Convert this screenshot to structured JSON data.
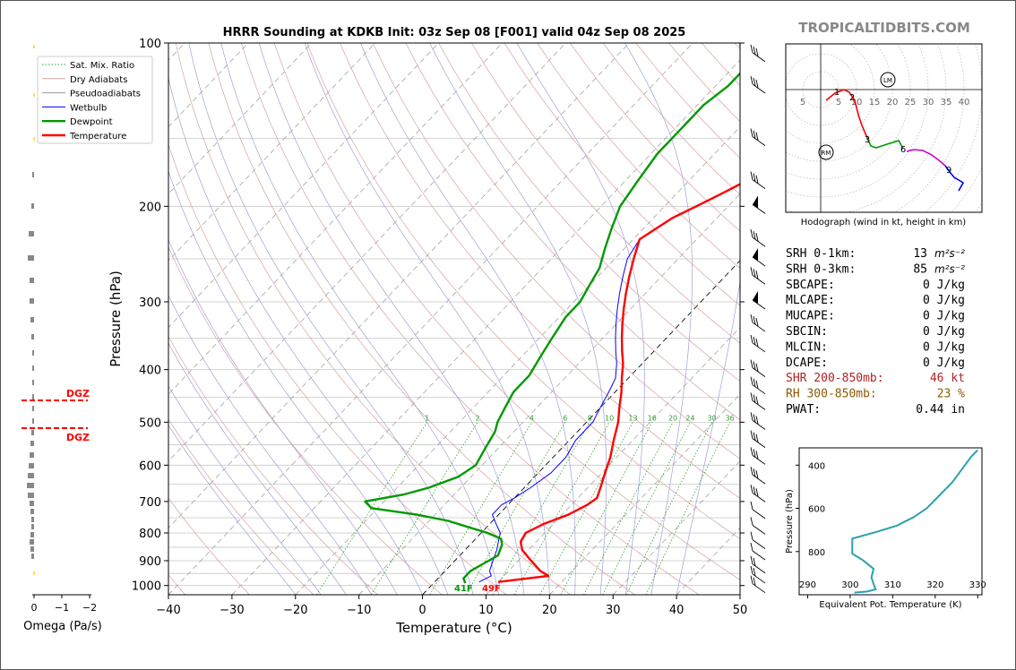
{
  "title": "HRRR Sounding at KDKB Init: 03z Sep 08 [F001] valid 04z Sep 08 2025",
  "watermark": "TROPICALTIDBITS.COM",
  "chart_data": [
    {
      "id": "skewt",
      "type": "line",
      "xlabel": "Temperature (°C)",
      "ylabel": "Pressure (hPa)",
      "xlim": [
        -40,
        50
      ],
      "ylim": [
        1040,
        100
      ],
      "yscale": "log",
      "x_ticks": [
        "−40",
        "−30",
        "−20",
        "−10",
        "0",
        "10",
        "20",
        "30",
        "40",
        "50"
      ],
      "y_ticks": [
        "100",
        "200",
        "300",
        "400",
        "500",
        "600",
        "700",
        "800",
        "900",
        "1000"
      ],
      "grid": true,
      "legend_position": "top-left",
      "legend": [
        "Sat. Mix. Ratio",
        "Dry Adiabats",
        "Pseudoadiabats",
        "Wetbulb",
        "Dewpoint",
        "Temperature"
      ],
      "mixing_ratio_labels": [
        "1",
        "2",
        "4",
        "6",
        "8",
        "10",
        "13",
        "16",
        "20",
        "24",
        "30",
        "36"
      ],
      "surface_temp_label": "49F",
      "surface_dew_label": "41F",
      "series": [
        {
          "name": "Temperature",
          "color": "#ff0000",
          "points": [
            [
              10,
              985
            ],
            [
              17,
              960
            ],
            [
              15,
              940
            ],
            [
              12,
              900
            ],
            [
              9,
              860
            ],
            [
              7.5,
              830
            ],
            [
              7,
              800
            ],
            [
              8.5,
              770
            ],
            [
              11,
              740
            ],
            [
              12.5,
              710
            ],
            [
              13,
              690
            ],
            [
              12,
              660
            ],
            [
              10.5,
              620
            ],
            [
              9,
              580
            ],
            [
              7,
              540
            ],
            [
              5,
              500
            ],
            [
              3,
              470
            ],
            [
              1,
              440
            ],
            [
              -1,
              415
            ],
            [
              -3,
              390
            ],
            [
              -5,
              370
            ],
            [
              -7,
              350
            ],
            [
              -9,
              330
            ],
            [
              -11,
              310
            ],
            [
              -13,
              290
            ],
            [
              -15,
              270
            ],
            [
              -17,
              250
            ],
            [
              -19,
              230
            ],
            [
              -17,
              210
            ],
            [
              -15,
              200
            ],
            [
              -13,
              190
            ],
            [
              -11,
              180
            ],
            [
              -9,
              170
            ],
            [
              -7,
              160
            ],
            [
              -5,
              150
            ],
            [
              -3,
              140
            ],
            [
              -1,
              130
            ],
            [
              1,
              120
            ],
            [
              2.5,
              110
            ],
            [
              3.5,
              100
            ]
          ]
        },
        {
          "name": "Dewpoint",
          "color": "#009900",
          "points": [
            [
              5,
              990
            ],
            [
              4,
              970
            ],
            [
              4,
              940
            ],
            [
              5,
              910
            ],
            [
              6,
              880
            ],
            [
              5,
              840
            ],
            [
              4,
              820
            ],
            [
              1,
              800
            ],
            [
              -3,
              780
            ],
            [
              -7,
              760
            ],
            [
              -13,
              740
            ],
            [
              -21,
              720
            ],
            [
              -23,
              700
            ],
            [
              -18,
              680
            ],
            [
              -15,
              660
            ],
            [
              -12,
              630
            ],
            [
              -11,
              600
            ],
            [
              -12,
              560
            ],
            [
              -13,
              520
            ],
            [
              -14,
              500
            ],
            [
              -15,
              470
            ],
            [
              -16,
              440
            ],
            [
              -16,
              410
            ],
            [
              -17,
              380
            ],
            [
              -18,
              350
            ],
            [
              -19,
              320
            ],
            [
              -19,
              300
            ],
            [
              -20,
              280
            ],
            [
              -21,
              260
            ],
            [
              -23,
              240
            ],
            [
              -25,
              220
            ],
            [
              -27,
              200
            ],
            [
              -28,
              180
            ],
            [
              -29,
              160
            ],
            [
              -29,
              150
            ],
            [
              -29,
              140
            ],
            [
              -29,
              130
            ],
            [
              -28,
              120
            ],
            [
              -28,
              110
            ],
            [
              -27,
              100
            ]
          ]
        },
        {
          "name": "Wetbulb",
          "color": "#0000ff",
          "points": [
            [
              7,
              985
            ],
            [
              8,
              960
            ],
            [
              7,
              940
            ],
            [
              6,
              900
            ],
            [
              5,
              860
            ],
            [
              4,
              830
            ],
            [
              3,
              800
            ],
            [
              1,
              770
            ],
            [
              -1,
              740
            ],
            [
              -1,
              710
            ],
            [
              0,
              690
            ],
            [
              1,
              660
            ],
            [
              2,
              620
            ],
            [
              2,
              580
            ],
            [
              1,
              540
            ],
            [
              1,
              500
            ],
            [
              0,
              470
            ],
            [
              -1,
              440
            ],
            [
              -2,
              415
            ],
            [
              -4,
              390
            ],
            [
              -6,
              370
            ],
            [
              -8,
              350
            ],
            [
              -10,
              330
            ],
            [
              -12,
              310
            ],
            [
              -14,
              290
            ],
            [
              -16,
              270
            ],
            [
              -18,
              250
            ],
            [
              -19,
              230
            ],
            [
              -17,
              210
            ],
            [
              -15,
              200
            ],
            [
              -13,
              190
            ],
            [
              -11,
              180
            ],
            [
              -9,
              170
            ],
            [
              -7,
              160
            ],
            [
              -5,
              150
            ],
            [
              -3,
              140
            ],
            [
              -1,
              130
            ],
            [
              1,
              120
            ],
            [
              2.5,
              110
            ],
            [
              3.5,
              100
            ]
          ]
        }
      ]
    },
    {
      "id": "hodograph",
      "type": "line",
      "title": "Hodograph (wind in kt, height in km)",
      "x_ticks": [
        "5",
        "5",
        "10",
        "15",
        "20",
        "25",
        "30",
        "35",
        "40"
      ],
      "height_labels": [
        "1",
        "2",
        "3",
        "6",
        "9"
      ],
      "storm_motion_labels": [
        "LM",
        "RM"
      ]
    },
    {
      "id": "omega",
      "type": "bar",
      "xlabel": "Omega (Pa/s)",
      "x_ticks": [
        "0",
        "−1",
        "−2"
      ],
      "dgz_label": "DGZ"
    },
    {
      "id": "theta_e",
      "type": "line",
      "xlabel": "Equivalent Pot. Temperature (K)",
      "ylabel": "Pressure (hPa)",
      "xlim": [
        288,
        331
      ],
      "ylim": [
        1000,
        320
      ],
      "x_ticks": [
        "290",
        "300",
        "310",
        "320",
        "330"
      ],
      "y_ticks": [
        "400",
        "600",
        "800"
      ],
      "series": [
        {
          "name": "theta-e",
          "color": "#2aa0b0",
          "points": [
            [
              301,
              990
            ],
            [
              304,
              985
            ],
            [
              306,
              975
            ],
            [
              305.5,
              950
            ],
            [
              305,
              920
            ],
            [
              305.5,
              880
            ],
            [
              303,
              840
            ],
            [
              300.5,
              810
            ],
            [
              300.5,
              740
            ],
            [
              306,
              710
            ],
            [
              311,
              680
            ],
            [
              315,
              640
            ],
            [
              318,
              600
            ],
            [
              320,
              560
            ],
            [
              322,
              520
            ],
            [
              324,
              480
            ],
            [
              325.5,
              440
            ],
            [
              327,
              400
            ],
            [
              328.5,
              360
            ],
            [
              330,
              330
            ]
          ]
        }
      ]
    }
  ],
  "indices": [
    {
      "label": "SRH 0-1km:",
      "value": "13",
      "unit": "m²s⁻²",
      "color": "#000000"
    },
    {
      "label": "SRH 0-3km:",
      "value": "85",
      "unit": "m²s⁻²",
      "color": "#000000"
    },
    {
      "label": "SBCAPE:",
      "value": "0 J/kg",
      "color": "#000000"
    },
    {
      "label": "MLCAPE:",
      "value": "0 J/kg",
      "color": "#000000"
    },
    {
      "label": "MUCAPE:",
      "value": "0 J/kg",
      "color": "#000000"
    },
    {
      "label": "SBCIN:",
      "value": "0 J/kg",
      "color": "#000000"
    },
    {
      "label": "MLCIN:",
      "value": "0 J/kg",
      "color": "#000000"
    },
    {
      "label": "DCAPE:",
      "value": "0 J/kg",
      "color": "#000000"
    },
    {
      "label": "SHR 200-850mb:",
      "value": "46 kt",
      "color": "#b22222"
    },
    {
      "label": "RH 300-850mb:",
      "value": "23 %",
      "color": "#8b5a00"
    },
    {
      "label": "PWAT:",
      "value": "0.44 in",
      "color": "#000000"
    }
  ],
  "colors": {
    "temperature": "#ff0000",
    "dewpoint": "#009900",
    "wetbulb": "#0000ff",
    "dry_adiabat": "#d9a0a0",
    "pseudoadiabat": "#a0a0d9",
    "mixing_ratio": "#30a030",
    "isotherm": "#888888",
    "theta_e": "#2aa0b0"
  }
}
